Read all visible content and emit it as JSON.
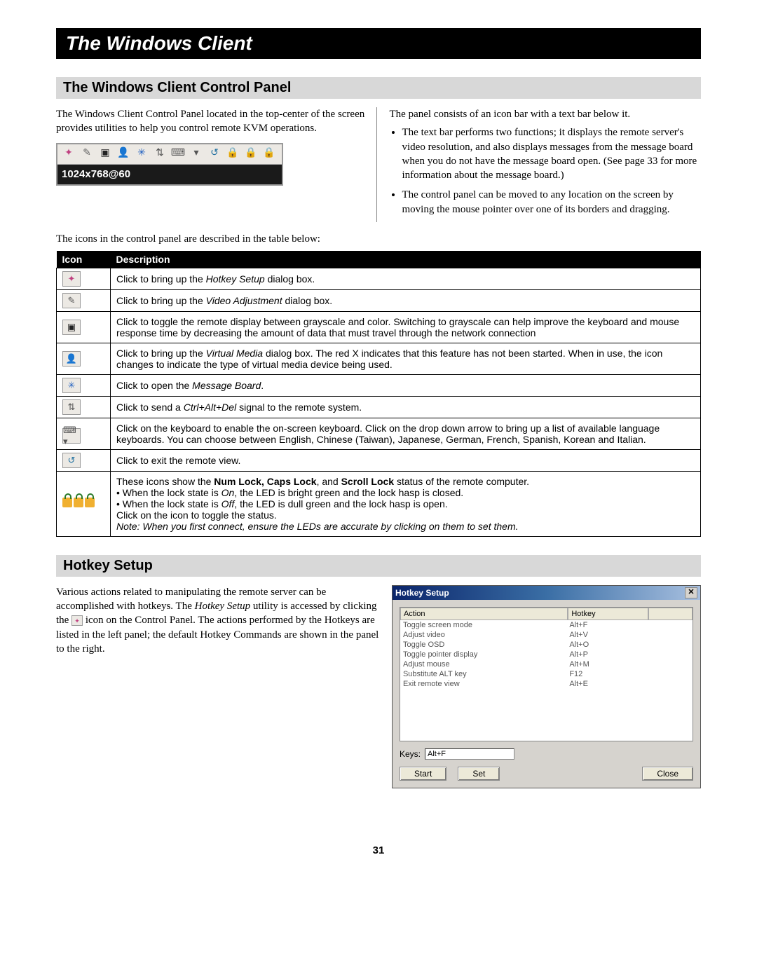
{
  "page_number": "31",
  "title_bar": "The Windows Client",
  "section1": {
    "header": "The Windows Client Control Panel",
    "left_para": "The Windows Client Control Panel located in the top-center of the screen provides utilities to help you control remote KVM operations.",
    "right_intro": "The panel consists of an icon bar with a text bar below it.",
    "bullet1": "The text bar performs two functions; it displays the remote server's video resolution, and also displays messages from the message board when you do not have the message board open. (See page 33 for more information about the message board.)",
    "bullet2": "The control panel can be moved to any location on the screen by moving the mouse pointer over one of its borders and dragging.",
    "panel_text": "1024x768@60",
    "table_intro": "The icons in the control panel are described in the table below:"
  },
  "table": {
    "th_icon": "Icon",
    "th_desc": "Description",
    "rows": [
      {
        "icon_glyph": "✦",
        "icon_color": "#c04080",
        "desc_parts": [
          "Click to bring up the ",
          "Hotkey Setup",
          " dialog box."
        ]
      },
      {
        "icon_glyph": "✎",
        "icon_color": "#555",
        "desc_parts": [
          "Click to bring up the ",
          "Video Adjustment",
          " dialog box."
        ]
      },
      {
        "icon_glyph": "▣",
        "icon_color": "#222",
        "desc_parts": [
          "Click to toggle the remote display between grayscale and color. Switching to grayscale can help improve the keyboard and mouse response time by decreasing the amount of data that must travel through the network connection"
        ]
      },
      {
        "icon_glyph": "👤",
        "icon_color": "#c05020",
        "desc_parts": [
          "Click to bring up the ",
          "Virtual Media",
          " dialog box. The red X indicates that this feature has not been started. When in use, the icon changes to indicate the type of virtual media device being used."
        ]
      },
      {
        "icon_glyph": "✳",
        "icon_color": "#2060c0",
        "desc_parts": [
          "Click to open the ",
          "Message Board",
          "."
        ]
      },
      {
        "icon_glyph": "⇅",
        "icon_color": "#555",
        "desc_parts": [
          "Click to send a ",
          "Ctrl+Alt+Del",
          " signal to the remote system."
        ]
      },
      {
        "icon_glyph": "⌨ ▾",
        "icon_color": "#555",
        "desc_parts": [
          "Click on the keyboard to enable the on-screen keyboard. Click on the drop down arrow to bring up a list of available language keyboards. You can choose between English, Chinese (Taiwan), Japanese, German, French, Spanish, Korean and Italian."
        ]
      },
      {
        "icon_glyph": "↺",
        "icon_color": "#2070a0",
        "desc_parts": [
          "Click to exit the remote view."
        ]
      }
    ],
    "locks_row": {
      "line1_pre": "These icons show the ",
      "line1_bold": "Num Lock, Caps Lock",
      "line1_mid": ", and ",
      "line1_bold2": "Scroll Lock",
      "line1_post": " status of the remote computer.",
      "bullet_on_pre": "• When the lock state is ",
      "bullet_on_em": "On",
      "bullet_on_post": ", the LED is bright green and the lock hasp is closed.",
      "bullet_off_pre": "• When the lock state is ",
      "bullet_off_em": "Off",
      "bullet_off_post": ", the LED is dull green and the lock hasp is open.",
      "line4": "Click on the icon to toggle the status.",
      "note": "Note: When you first connect, ensure the LEDs are accurate by clicking on them to set them."
    }
  },
  "section2": {
    "header": "Hotkey Setup",
    "para_pre": "Various actions related to manipulating the remote server can be accomplished with hotkeys. The ",
    "para_em": "Hotkey Setup",
    "para_mid": " utility is accessed by clicking the ",
    "para_post": " icon on the Control Panel. The actions performed by the Hotkeys are listed in the left panel; the default Hotkey Commands are shown in the panel to the right.",
    "dialog": {
      "title": "Hotkey Setup",
      "col_action": "Action",
      "col_hotkey": "Hotkey",
      "rows": [
        {
          "a": "Toggle screen mode",
          "h": "Alt+F"
        },
        {
          "a": "Adjust video",
          "h": "Alt+V"
        },
        {
          "a": "Toggle OSD",
          "h": "Alt+O"
        },
        {
          "a": "Toggle pointer display",
          "h": "Alt+P"
        },
        {
          "a": "Adjust mouse",
          "h": "Alt+M"
        },
        {
          "a": "Substitute ALT key",
          "h": "F12"
        },
        {
          "a": "Exit remote view",
          "h": "Alt+E"
        }
      ],
      "keys_label": "Keys:",
      "keys_value": "Alt+F",
      "btn_start": "Start",
      "btn_set": "Set",
      "btn_close": "Close"
    }
  },
  "panel_icons": [
    {
      "g": "✦",
      "c": "#c04080"
    },
    {
      "g": "✎",
      "c": "#666"
    },
    {
      "g": "▣",
      "c": "#222"
    },
    {
      "g": "👤",
      "c": "#c05020"
    },
    {
      "g": "✳",
      "c": "#2060c0"
    },
    {
      "g": "⇅",
      "c": "#555"
    },
    {
      "g": "⌨",
      "c": "#555"
    },
    {
      "g": "▾",
      "c": "#555"
    },
    {
      "g": "↺",
      "c": "#2070a0"
    },
    {
      "g": "🔒",
      "c": "#f0b030"
    },
    {
      "g": "🔒",
      "c": "#f0b030"
    },
    {
      "g": "🔒",
      "c": "#f0b030"
    }
  ]
}
